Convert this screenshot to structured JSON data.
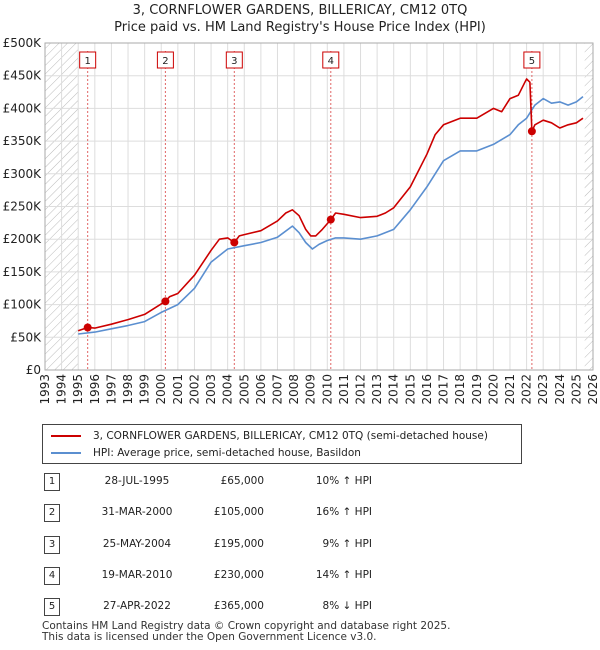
{
  "title_line1": "3, CORNFLOWER GARDENS, BILLERICAY, CM12 0TQ",
  "title_line2": "Price paid vs. HM Land Registry's House Price Index (HPI)",
  "colors": {
    "property": "#cc0000",
    "hpi": "#5b8fd0",
    "marker": "#cc0000",
    "vline": "#e06666"
  },
  "chart_data": {
    "type": "line",
    "title": "Price paid vs. HM Land Registry's House Price Index (HPI)",
    "xlabel": "",
    "ylabel": "",
    "xlim": [
      1993,
      2026
    ],
    "ylim": [
      0,
      500000
    ],
    "x_ticks": [
      "1993",
      "1994",
      "1995",
      "1996",
      "1997",
      "1998",
      "1999",
      "2000",
      "2001",
      "2002",
      "2003",
      "2004",
      "2005",
      "2006",
      "2007",
      "2008",
      "2009",
      "2010",
      "2011",
      "2012",
      "2013",
      "2014",
      "2015",
      "2016",
      "2017",
      "2018",
      "2019",
      "2020",
      "2021",
      "2022",
      "2023",
      "2024",
      "2025",
      "2026"
    ],
    "y_ticks": [
      {
        "value": 0,
        "label": "£0"
      },
      {
        "value": 50000,
        "label": "£50K"
      },
      {
        "value": 100000,
        "label": "£100K"
      },
      {
        "value": 150000,
        "label": "£150K"
      },
      {
        "value": 200000,
        "label": "£200K"
      },
      {
        "value": 250000,
        "label": "£250K"
      },
      {
        "value": 300000,
        "label": "£300K"
      },
      {
        "value": 350000,
        "label": "£350K"
      },
      {
        "value": 400000,
        "label": "£400K"
      },
      {
        "value": 450000,
        "label": "£450K"
      },
      {
        "value": 500000,
        "label": "£500K"
      }
    ],
    "hatched_ranges": [
      [
        1993,
        1995.0
      ],
      [
        2025.5,
        2026
      ]
    ],
    "series": [
      {
        "name": "3, CORNFLOWER GARDENS, BILLERICAY, CM12 0TQ (semi-detached house)",
        "color": "#cc0000",
        "x": [
          1995.0,
          1995.57,
          1996.0,
          1997.0,
          1998.0,
          1999.0,
          1999.5,
          2000.25,
          2000.5,
          2001.0,
          2002.0,
          2003.0,
          2003.5,
          2004.0,
          2004.4,
          2004.7,
          2005.0,
          2006.0,
          2007.0,
          2007.5,
          2007.9,
          2008.3,
          2008.7,
          2009.0,
          2009.3,
          2009.7,
          2010.21,
          2010.5,
          2011.0,
          2012.0,
          2013.0,
          2013.5,
          2014.0,
          2015.0,
          2016.0,
          2016.5,
          2017.0,
          2018.0,
          2019.0,
          2020.0,
          2020.5,
          2021.0,
          2021.5,
          2021.9,
          2022.0,
          2022.2,
          2022.32,
          2022.5,
          2023.0,
          2023.5,
          2024.0,
          2024.5,
          2025.0,
          2025.4
        ],
        "values": [
          60000,
          65000,
          64000,
          70000,
          77000,
          85000,
          93000,
          105000,
          112000,
          117000,
          145000,
          183000,
          200000,
          202000,
          195000,
          205000,
          207000,
          213000,
          228000,
          240000,
          245000,
          236000,
          215000,
          205000,
          205000,
          215000,
          230000,
          240000,
          238000,
          233000,
          235000,
          240000,
          248000,
          280000,
          330000,
          360000,
          375000,
          385000,
          385000,
          400000,
          395000,
          415000,
          420000,
          440000,
          445000,
          440000,
          365000,
          375000,
          382000,
          378000,
          370000,
          375000,
          378000,
          385000
        ]
      },
      {
        "name": "HPI: Average price, semi-detached house, Basildon",
        "color": "#5b8fd0",
        "x": [
          1995.0,
          1996.0,
          1997.0,
          1998.0,
          1999.0,
          2000.0,
          2001.0,
          2002.0,
          2003.0,
          2004.0,
          2005.0,
          2006.0,
          2007.0,
          2007.9,
          2008.3,
          2008.7,
          2009.1,
          2009.5,
          2010.0,
          2010.5,
          2011.0,
          2012.0,
          2013.0,
          2014.0,
          2015.0,
          2016.0,
          2017.0,
          2018.0,
          2019.0,
          2020.0,
          2021.0,
          2021.5,
          2022.0,
          2022.5,
          2023.0,
          2023.5,
          2024.0,
          2024.5,
          2025.0,
          2025.4
        ],
        "values": [
          55000,
          58000,
          63000,
          68000,
          74000,
          88000,
          100000,
          125000,
          165000,
          185000,
          190000,
          195000,
          203000,
          220000,
          210000,
          195000,
          185000,
          192000,
          198000,
          202000,
          202000,
          200000,
          205000,
          215000,
          245000,
          280000,
          320000,
          335000,
          335000,
          345000,
          360000,
          375000,
          385000,
          405000,
          415000,
          408000,
          410000,
          405000,
          410000,
          418000
        ]
      }
    ],
    "sales": [
      {
        "num": "1",
        "year": 1995.57,
        "price": 65000
      },
      {
        "num": "2",
        "year": 2000.25,
        "price": 105000
      },
      {
        "num": "3",
        "year": 2004.4,
        "price": 195000
      },
      {
        "num": "4",
        "year": 2010.21,
        "price": 230000
      },
      {
        "num": "5",
        "year": 2022.32,
        "price": 365000
      }
    ]
  },
  "legend": {
    "property_label": "3, CORNFLOWER GARDENS, BILLERICAY, CM12 0TQ (semi-detached house)",
    "hpi_label": "HPI: Average price, semi-detached house, Basildon"
  },
  "sales_table": [
    {
      "num": "1",
      "date": "28-JUL-1995",
      "price": "£65,000",
      "hpi": "10% ↑ HPI"
    },
    {
      "num": "2",
      "date": "31-MAR-2000",
      "price": "£105,000",
      "hpi": "16% ↑ HPI"
    },
    {
      "num": "3",
      "date": "25-MAY-2004",
      "price": "£195,000",
      "hpi": "9% ↑ HPI"
    },
    {
      "num": "4",
      "date": "19-MAR-2010",
      "price": "£230,000",
      "hpi": "14% ↑ HPI"
    },
    {
      "num": "5",
      "date": "27-APR-2022",
      "price": "£365,000",
      "hpi": "8% ↓ HPI"
    }
  ],
  "footer": {
    "line1": "Contains HM Land Registry data © Crown copyright and database right 2025.",
    "line2": "This data is licensed under the Open Government Licence v3.0."
  }
}
